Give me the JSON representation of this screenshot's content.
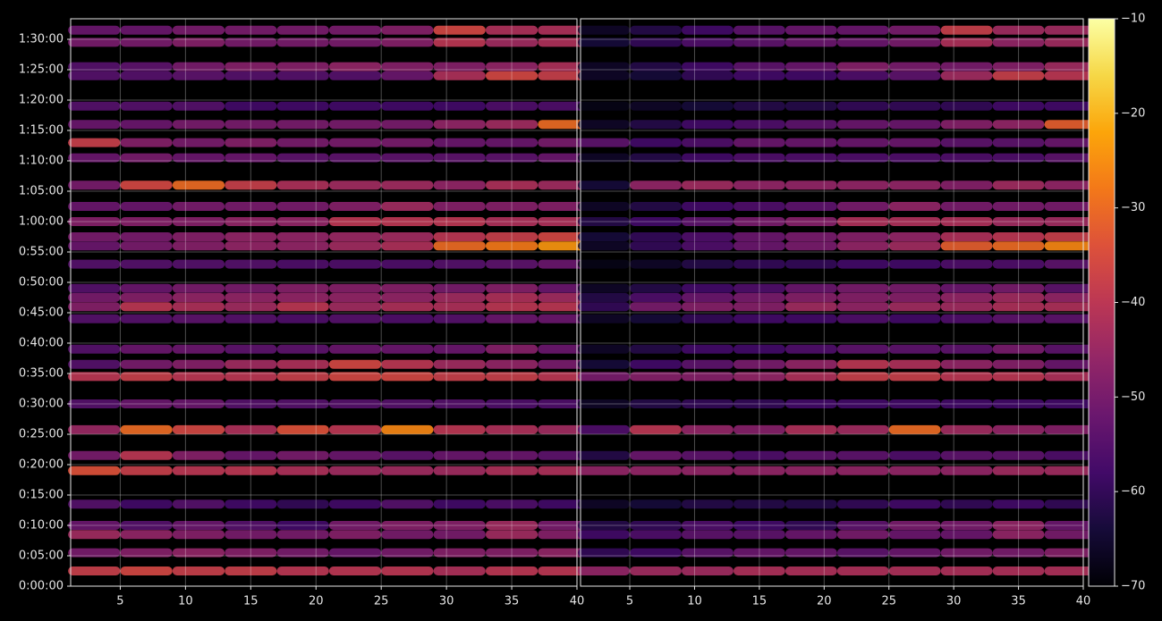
{
  "chart_data": [
    {
      "type": "heatmap",
      "colormap": "inferno",
      "grid": true,
      "xlim": [
        1.2,
        40
      ],
      "xticks": [
        5,
        10,
        15,
        20,
        25,
        30,
        35,
        40
      ],
      "ylim": [
        0,
        5603
      ],
      "yticks": [
        {
          "value": 0,
          "label": "0:00:00"
        },
        {
          "value": 300,
          "label": "0:05:00"
        },
        {
          "value": 600,
          "label": "0:10:00"
        },
        {
          "value": 900,
          "label": "0:15:00"
        },
        {
          "value": 1200,
          "label": "0:20:00"
        },
        {
          "value": 1500,
          "label": "0:25:00"
        },
        {
          "value": 1800,
          "label": "0:30:00"
        },
        {
          "value": 2100,
          "label": "0:35:00"
        },
        {
          "value": 2400,
          "label": "0:40:00"
        },
        {
          "value": 2700,
          "label": "0:45:00"
        },
        {
          "value": 3000,
          "label": "0:50:00"
        },
        {
          "value": 3300,
          "label": "0:55:00"
        },
        {
          "value": 3600,
          "label": "1:00:00"
        },
        {
          "value": 3900,
          "label": "1:05:00"
        },
        {
          "value": 4200,
          "label": "1:10:00"
        },
        {
          "value": 4500,
          "label": "1:15:00"
        },
        {
          "value": 4800,
          "label": "1:20:00"
        },
        {
          "value": 5100,
          "label": "1:25:00"
        },
        {
          "value": 5400,
          "label": "1:30:00"
        }
      ],
      "x": [
        3,
        7,
        11,
        15,
        19,
        23,
        27,
        31,
        35,
        39
      ],
      "y": [
        150,
        330,
        510,
        600,
        810,
        1140,
        1290,
        1545,
        1800,
        2070,
        2190,
        2340,
        2640,
        2760,
        2850,
        2940,
        3180,
        3360,
        3450,
        3600,
        3750,
        3960,
        4230,
        4380,
        4560,
        4740,
        5040,
        5130,
        5370,
        5490
      ],
      "z": [
        [
          -38,
          -36,
          -38,
          -38,
          -40,
          -40,
          -40,
          -42,
          -40,
          -40
        ],
        [
          -50,
          -48,
          -46,
          -48,
          -50,
          -52,
          -50,
          -48,
          -48,
          -46
        ],
        [
          -44,
          -46,
          -48,
          -50,
          -50,
          -48,
          -50,
          -50,
          -44,
          -48
        ],
        [
          -52,
          -55,
          -52,
          -55,
          -58,
          -50,
          -48,
          -48,
          -44,
          -50
        ],
        [
          -55,
          -58,
          -55,
          -58,
          -60,
          -58,
          -55,
          -58,
          -56,
          -58
        ],
        [
          -34,
          -38,
          -40,
          -40,
          -42,
          -44,
          -44,
          -44,
          -42,
          -42
        ],
        [
          -50,
          -40,
          -48,
          -52,
          -50,
          -52,
          -54,
          -52,
          -52,
          -54
        ],
        [
          -45,
          -30,
          -36,
          -42,
          -34,
          -40,
          -26,
          -40,
          -42,
          -44
        ],
        [
          -55,
          -52,
          -52,
          -55,
          -55,
          -55,
          -55,
          -55,
          -56,
          -56
        ],
        [
          -40,
          -38,
          -40,
          -40,
          -38,
          -36,
          -36,
          -38,
          -38,
          -40
        ],
        [
          -55,
          -50,
          -48,
          -44,
          -42,
          -36,
          -40,
          -44,
          -46,
          -50
        ],
        [
          -55,
          -52,
          -52,
          -54,
          -54,
          -52,
          -52,
          -52,
          -48,
          -52
        ],
        [
          -55,
          -55,
          -54,
          -55,
          -56,
          -55,
          -56,
          -55,
          -52,
          -52
        ],
        [
          -48,
          -40,
          -42,
          -44,
          -40,
          -44,
          -42,
          -42,
          -40,
          -40
        ],
        [
          -50,
          -48,
          -46,
          -46,
          -46,
          -46,
          -46,
          -44,
          -42,
          -44
        ],
        [
          -55,
          -52,
          -50,
          -50,
          -48,
          -48,
          -48,
          -50,
          -48,
          -52
        ],
        [
          -55,
          -55,
          -55,
          -55,
          -56,
          -56,
          -56,
          -55,
          -54,
          -52
        ],
        [
          -52,
          -50,
          -48,
          -46,
          -46,
          -44,
          -42,
          -30,
          -28,
          -24
        ],
        [
          -50,
          -50,
          -48,
          -46,
          -46,
          -45,
          -44,
          -40,
          -38,
          -36
        ],
        [
          -48,
          -48,
          -48,
          -46,
          -46,
          -40,
          -40,
          -40,
          -42,
          -42
        ],
        [
          -52,
          -52,
          -50,
          -50,
          -50,
          -48,
          -44,
          -48,
          -48,
          -48
        ],
        [
          -50,
          -36,
          -30,
          -38,
          -42,
          -44,
          -44,
          -46,
          -42,
          -44
        ],
        [
          -52,
          -50,
          -52,
          -52,
          -54,
          -54,
          -54,
          -54,
          -54,
          -52
        ],
        [
          -38,
          -48,
          -50,
          -48,
          -50,
          -50,
          -50,
          -52,
          -52,
          -50
        ],
        [
          -52,
          -52,
          -50,
          -50,
          -50,
          -50,
          -50,
          -46,
          -44,
          -30
        ],
        [
          -55,
          -55,
          -55,
          -58,
          -58,
          -58,
          -58,
          -58,
          -56,
          -56
        ],
        [
          -55,
          -55,
          -54,
          -55,
          -55,
          -55,
          -52,
          -42,
          -36,
          -38
        ],
        [
          -55,
          -54,
          -50,
          -48,
          -48,
          -46,
          -48,
          -48,
          -46,
          -42
        ],
        [
          -50,
          -50,
          -48,
          -50,
          -50,
          -50,
          -48,
          -40,
          -44,
          -42
        ],
        [
          -52,
          -52,
          -50,
          -50,
          -50,
          -50,
          -48,
          -36,
          -42,
          -42
        ]
      ]
    },
    {
      "type": "heatmap",
      "colormap": "inferno",
      "grid": true,
      "xlim": [
        1.2,
        40
      ],
      "xticks": [
        5,
        10,
        15,
        20,
        25,
        30,
        35,
        40
      ],
      "ylim": [
        0,
        5603
      ],
      "zlim": [
        -70,
        -10
      ],
      "zticks": [
        {
          "value": -70,
          "label": "−70"
        },
        {
          "value": -60,
          "label": "−60"
        },
        {
          "value": -50,
          "label": "−50"
        },
        {
          "value": -40,
          "label": "−40"
        },
        {
          "value": -30,
          "label": "−30"
        },
        {
          "value": -20,
          "label": "−20"
        },
        {
          "value": -10,
          "label": "−10"
        }
      ],
      "x": [
        3,
        7,
        11,
        15,
        19,
        23,
        27,
        31,
        35,
        39
      ],
      "y": [
        150,
        330,
        510,
        600,
        810,
        1140,
        1290,
        1545,
        1800,
        2070,
        2190,
        2340,
        2640,
        2760,
        2850,
        2940,
        3180,
        3360,
        3450,
        3600,
        3750,
        3960,
        4230,
        4380,
        4560,
        4740,
        5040,
        5130,
        5370,
        5490
      ],
      "z": [
        [
          -46,
          -44,
          -44,
          -42,
          -42,
          -42,
          -42,
          -42,
          -42,
          -42
        ],
        [
          -60,
          -58,
          -54,
          -52,
          -52,
          -54,
          -52,
          -50,
          -50,
          -48
        ],
        [
          -58,
          -56,
          -54,
          -54,
          -52,
          -50,
          -52,
          -52,
          -46,
          -50
        ],
        [
          -62,
          -60,
          -56,
          -58,
          -60,
          -54,
          -50,
          -50,
          -46,
          -52
        ],
        [
          -66,
          -64,
          -62,
          -62,
          -62,
          -60,
          -58,
          -60,
          -58,
          -60
        ],
        [
          -46,
          -46,
          -46,
          -46,
          -46,
          -46,
          -46,
          -46,
          -44,
          -44
        ],
        [
          -62,
          -52,
          -54,
          -56,
          -54,
          -54,
          -56,
          -54,
          -54,
          -56
        ],
        [
          -56,
          -40,
          -46,
          -48,
          -42,
          -44,
          -30,
          -44,
          -46,
          -48
        ],
        [
          -66,
          -62,
          -60,
          -60,
          -58,
          -58,
          -58,
          -58,
          -58,
          -58
        ],
        [
          -50,
          -48,
          -48,
          -46,
          -42,
          -38,
          -38,
          -40,
          -40,
          -42
        ],
        [
          -64,
          -58,
          -54,
          -50,
          -46,
          -40,
          -42,
          -46,
          -48,
          -52
        ],
        [
          -66,
          -62,
          -58,
          -58,
          -56,
          -54,
          -54,
          -54,
          -50,
          -54
        ],
        [
          -66,
          -64,
          -60,
          -58,
          -58,
          -56,
          -58,
          -56,
          -54,
          -54
        ],
        [
          -60,
          -50,
          -48,
          -48,
          -44,
          -46,
          -44,
          -44,
          -42,
          -42
        ],
        [
          -62,
          -56,
          -52,
          -50,
          -48,
          -48,
          -48,
          -46,
          -44,
          -46
        ],
        [
          -66,
          -62,
          -58,
          -56,
          -52,
          -50,
          -50,
          -52,
          -50,
          -54
        ],
        [
          -68,
          -66,
          -62,
          -60,
          -60,
          -58,
          -58,
          -56,
          -56,
          -54
        ],
        [
          -66,
          -60,
          -56,
          -52,
          -50,
          -46,
          -44,
          -32,
          -30,
          -26
        ],
        [
          -64,
          -60,
          -56,
          -52,
          -50,
          -48,
          -46,
          -42,
          -40,
          -38
        ],
        [
          -62,
          -58,
          -54,
          -50,
          -48,
          -42,
          -42,
          -42,
          -44,
          -44
        ],
        [
          -66,
          -62,
          -58,
          -56,
          -54,
          -50,
          -46,
          -50,
          -50,
          -50
        ],
        [
          -64,
          -46,
          -44,
          -46,
          -46,
          -46,
          -46,
          -48,
          -44,
          -46
        ],
        [
          -66,
          -62,
          -58,
          -56,
          -56,
          -56,
          -56,
          -56,
          -56,
          -54
        ],
        [
          -54,
          -58,
          -56,
          -52,
          -52,
          -52,
          -52,
          -54,
          -54,
          -52
        ],
        [
          -66,
          -62,
          -58,
          -56,
          -54,
          -52,
          -52,
          -48,
          -46,
          -32
        ],
        [
          -68,
          -66,
          -64,
          -62,
          -62,
          -60,
          -60,
          -60,
          -58,
          -58
        ],
        [
          -66,
          -64,
          -60,
          -58,
          -58,
          -56,
          -54,
          -44,
          -38,
          -40
        ],
        [
          -66,
          -62,
          -58,
          -54,
          -52,
          -48,
          -50,
          -50,
          -48,
          -44
        ],
        [
          -64,
          -60,
          -56,
          -54,
          -52,
          -52,
          -50,
          -42,
          -46,
          -44
        ],
        [
          -66,
          -62,
          -58,
          -54,
          -52,
          -52,
          -50,
          -38,
          -44,
          -44
        ]
      ]
    }
  ]
}
